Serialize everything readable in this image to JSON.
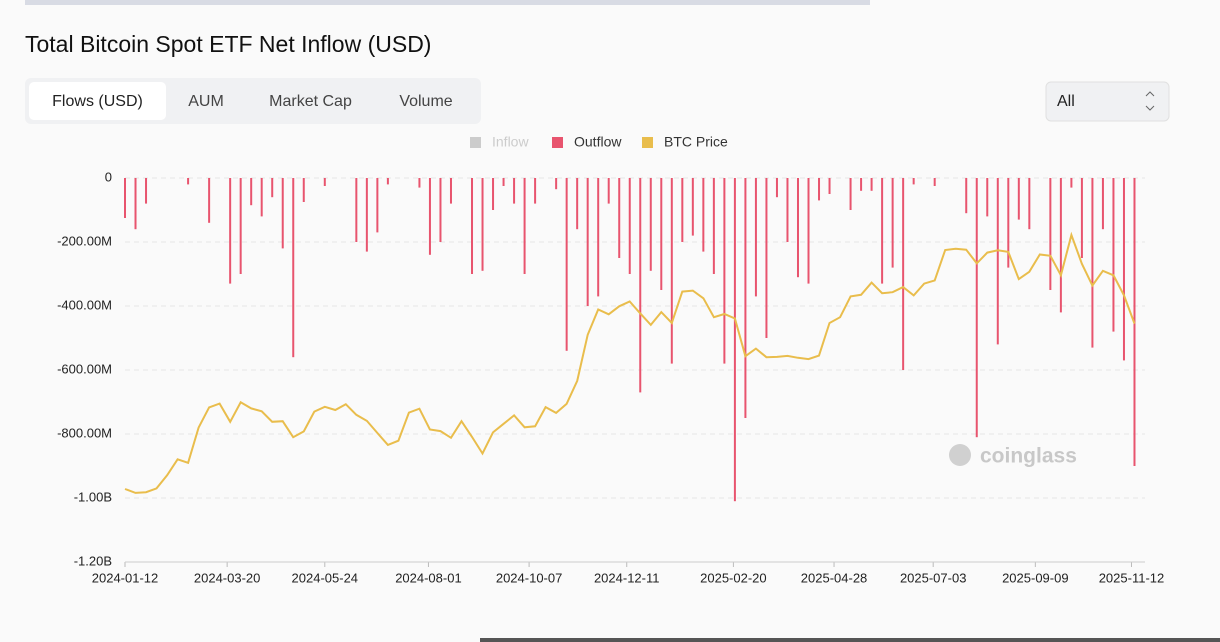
{
  "header": {
    "title": "Total Bitcoin Spot ETF Net Inflow (USD)"
  },
  "tabs": {
    "items": [
      "Flows (USD)",
      "AUM",
      "Market Cap",
      "Volume"
    ],
    "active": 0
  },
  "range_select": "All",
  "watermark": "coinglass",
  "chart_data": {
    "type": "bar-line",
    "x": [
      "2024-01-12",
      "2024-01-19",
      "2024-01-26",
      "2024-02-02",
      "2024-02-09",
      "2024-02-16",
      "2024-02-23",
      "2024-03-01",
      "2024-03-08",
      "2024-03-15",
      "2024-03-22",
      "2024-03-29",
      "2024-04-05",
      "2024-04-12",
      "2024-04-19",
      "2024-04-26",
      "2024-05-03",
      "2024-05-10",
      "2024-05-17",
      "2024-05-24",
      "2024-05-31",
      "2024-06-07",
      "2024-06-14",
      "2024-06-21",
      "2024-06-28",
      "2024-07-05",
      "2024-07-12",
      "2024-07-19",
      "2024-07-26",
      "2024-08-02",
      "2024-08-09",
      "2024-08-16",
      "2024-08-23",
      "2024-08-30",
      "2024-09-06",
      "2024-09-13",
      "2024-09-20",
      "2024-09-27",
      "2024-10-04",
      "2024-10-11",
      "2024-10-18",
      "2024-10-25",
      "2024-11-01",
      "2024-11-08",
      "2024-11-15",
      "2024-11-22",
      "2024-11-29",
      "2024-12-06",
      "2024-12-13",
      "2024-12-20",
      "2024-12-27",
      "2025-01-03",
      "2025-01-10",
      "2025-01-17",
      "2025-01-24",
      "2025-01-31",
      "2025-02-07",
      "2025-02-14",
      "2025-02-21",
      "2025-02-28",
      "2025-03-07",
      "2025-03-14",
      "2025-03-21",
      "2025-03-28",
      "2025-04-04",
      "2025-04-11",
      "2025-04-18",
      "2025-04-25",
      "2025-05-02",
      "2025-05-09",
      "2025-05-16",
      "2025-05-23",
      "2025-05-30",
      "2025-06-06",
      "2025-06-13",
      "2025-06-20",
      "2025-06-27",
      "2025-07-04",
      "2025-07-11",
      "2025-07-18",
      "2025-07-25",
      "2025-08-01",
      "2025-08-08",
      "2025-08-15",
      "2025-08-22",
      "2025-08-29",
      "2025-09-05",
      "2025-09-12",
      "2025-09-19",
      "2025-09-26",
      "2025-10-03",
      "2025-10-10",
      "2025-10-17",
      "2025-10-24",
      "2025-10-31",
      "2025-11-07",
      "2025-11-14"
    ],
    "series": [
      {
        "name": "Inflow",
        "color": "#cccccc",
        "hidden": true,
        "values": [
          null,
          null,
          null,
          null,
          null,
          null,
          null,
          null,
          null,
          null,
          null,
          null,
          null,
          null,
          null,
          null,
          null,
          null,
          null,
          null,
          null,
          null,
          null,
          null,
          null,
          null,
          null,
          null,
          null,
          null,
          null,
          null,
          null,
          null,
          null,
          null,
          null,
          null,
          null,
          null,
          null,
          null,
          null,
          null,
          null,
          null,
          null,
          null,
          null,
          null,
          null,
          null,
          null,
          null,
          null,
          null,
          null,
          null,
          null,
          null,
          null,
          null,
          null,
          null,
          null,
          null,
          null,
          null,
          null,
          null,
          null,
          null,
          null,
          null,
          null,
          null,
          null,
          null,
          null,
          null,
          null,
          null,
          null,
          null,
          null,
          null,
          null,
          null,
          null,
          null,
          null,
          null,
          null,
          null,
          null,
          null,
          null
        ]
      },
      {
        "name": "Outflow",
        "color": "#e8546e",
        "values": [
          -125000000,
          -160000000,
          -80000000,
          null,
          null,
          null,
          -20000000,
          null,
          -140000000,
          null,
          -330000000,
          -300000000,
          -85000000,
          -120000000,
          -60000000,
          -220000000,
          -560000000,
          -75000000,
          null,
          -25000000,
          null,
          null,
          -200000000,
          -230000000,
          -170000000,
          -20000000,
          null,
          null,
          -30000000,
          -240000000,
          -200000000,
          -80000000,
          null,
          -300000000,
          -290000000,
          -100000000,
          -25000000,
          -80000000,
          -300000000,
          -80000000,
          null,
          -35000000,
          -540000000,
          -160000000,
          -400000000,
          -370000000,
          -80000000,
          -250000000,
          -300000000,
          -670000000,
          -290000000,
          -350000000,
          -580000000,
          -200000000,
          -180000000,
          -230000000,
          -300000000,
          -580000000,
          -1010000000,
          -750000000,
          -370000000,
          -500000000,
          -60000000,
          -200000000,
          -310000000,
          -330000000,
          -70000000,
          -50000000,
          null,
          -100000000,
          -40000000,
          -40000000,
          -330000000,
          -280000000,
          -600000000,
          -20000000,
          null,
          -25000000,
          null,
          null,
          -110000000,
          -810000000,
          -120000000,
          -520000000,
          -280000000,
          -130000000,
          -160000000,
          null,
          -350000000,
          -420000000,
          -30000000,
          -250000000,
          -530000000,
          -160000000,
          -480000000,
          -570000000,
          -900000000
        ]
      },
      {
        "name": "BTC Price",
        "color": "#e9bd4c",
        "axis": "y2",
        "values": [
          42800,
          41600,
          41800,
          43000,
          47100,
          52100,
          51000,
          62000,
          68300,
          69500,
          63800,
          69900,
          68000,
          67100,
          63800,
          64000,
          59000,
          60800,
          67000,
          68500,
          67500,
          69300,
          66000,
          64100,
          60300,
          56600,
          57900,
          66700,
          67900,
          61400,
          60900,
          58800,
          64000,
          59100,
          53900,
          60500,
          63200,
          65800,
          62100,
          62400,
          68400,
          66600,
          69400,
          76600,
          91000,
          98900,
          97400,
          99900,
          101400,
          97700,
          94100,
          98100,
          94700,
          104500,
          104800,
          102400,
          96500,
          97500,
          96100,
          84300,
          86700,
          84000,
          84100,
          84400,
          83800,
          83400,
          84500,
          94700,
          96500,
          103000,
          103500,
          107300,
          104000,
          104300,
          105900,
          103300,
          107000,
          108000,
          117500,
          117900,
          117600,
          113300,
          116700,
          117400,
          116900,
          108400,
          110700,
          116100,
          115700,
          109600,
          122200,
          113200,
          106400,
          111000,
          109600,
          103300,
          94500
        ]
      }
    ],
    "xlim": [
      "2024-01-12",
      "2025-11-21"
    ],
    "xticks": [
      "2024-01-12",
      "2024-03-20",
      "2024-05-24",
      "2024-08-01",
      "2024-10-07",
      "2024-12-11",
      "2025-02-20",
      "2025-04-28",
      "2025-07-03",
      "2025-09-09",
      "2025-11-12"
    ],
    "ylim": [
      -1200000000,
      0
    ],
    "yticks": [
      0,
      {
        "value": -200000000,
        "label": "-200.00M"
      },
      {
        "value": -400000000,
        "label": "-400.00M"
      },
      {
        "value": -600000000,
        "label": "-600.00M"
      },
      {
        "value": -800000000,
        "label": "-800.00M"
      },
      {
        "value": -1000000000,
        "label": "-1.00B"
      },
      {
        "value": -1200000000,
        "label": "-1.20B"
      }
    ],
    "y2lim": [
      20000,
      140000
    ],
    "grid": true
  }
}
